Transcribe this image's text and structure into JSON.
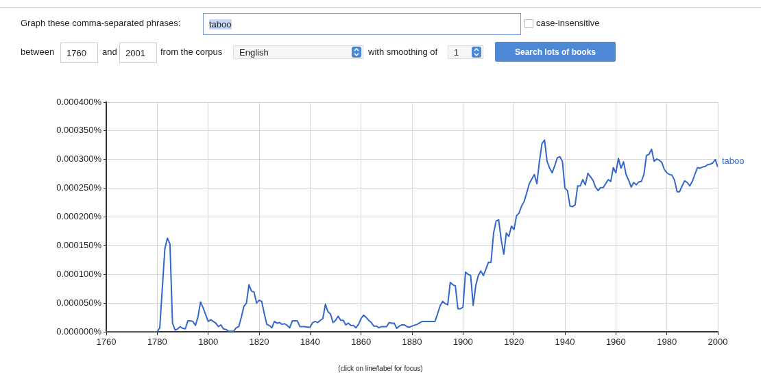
{
  "chart_data": {
    "type": "line",
    "annotations": [
      "Graph these comma-separated phrases:",
      "taboo",
      "case-insensitive",
      "between",
      "1760",
      "and",
      "2001",
      "from the corpus",
      "English",
      "with smoothing of",
      "1",
      "Search lots of books",
      "(click on line/label for focus)"
    ],
    "xlim": [
      1760,
      2000
    ],
    "xticks": [
      1760,
      1780,
      1800,
      1820,
      1840,
      1860,
      1880,
      1900,
      1920,
      1940,
      1960,
      1980,
      2000
    ],
    "ylim": [
      0,
      0.0004
    ],
    "yticks": [
      {
        "value": 0,
        "label": "0.000000%"
      },
      {
        "value": 5e-05,
        "label": "0.000050%"
      },
      {
        "value": 0.0001,
        "label": "0.000100%"
      },
      {
        "value": 0.00015,
        "label": "0.000150%"
      },
      {
        "value": 0.0002,
        "label": "0.000200%"
      },
      {
        "value": 0.00025,
        "label": "0.000250%"
      },
      {
        "value": 0.0003,
        "label": "0.000300%"
      },
      {
        "value": 0.00035,
        "label": "0.000350%"
      },
      {
        "value": 0.0004,
        "label": "0.000400%"
      }
    ],
    "grid": true,
    "legend": false,
    "marker": "none",
    "line_style": "solid",
    "series": [
      {
        "name": "taboo",
        "color": "#3366cc",
        "x": [
          1760,
          1765,
          1770,
          1775,
          1780,
          1781,
          1783,
          1784,
          1785,
          1786,
          1787,
          1788,
          1789,
          1790,
          1791,
          1792,
          1793,
          1794,
          1795,
          1796,
          1797,
          1798,
          1799,
          1800,
          1801,
          1802,
          1803,
          1804,
          1805,
          1806,
          1807,
          1808,
          1809,
          1810,
          1811,
          1812,
          1813,
          1814,
          1815,
          1816,
          1817,
          1818,
          1819,
          1820,
          1821,
          1822,
          1823,
          1824,
          1825,
          1826,
          1827,
          1828,
          1829,
          1830,
          1831,
          1832,
          1833,
          1834,
          1835,
          1836,
          1837,
          1838,
          1839,
          1840,
          1841,
          1842,
          1843,
          1844,
          1845,
          1846,
          1847,
          1848,
          1849,
          1850,
          1851,
          1852,
          1853,
          1854,
          1855,
          1856,
          1857,
          1858,
          1859,
          1860,
          1861,
          1862,
          1863,
          1864,
          1865,
          1866,
          1867,
          1868,
          1869,
          1870,
          1871,
          1872,
          1873,
          1874,
          1875,
          1876,
          1877,
          1878,
          1879,
          1880,
          1882,
          1884,
          1886,
          1888,
          1889,
          1890,
          1891,
          1892,
          1893,
          1894,
          1895,
          1896,
          1897,
          1898,
          1899,
          1900,
          1901,
          1902,
          1903,
          1904,
          1905,
          1906,
          1907,
          1908,
          1909,
          1910,
          1911,
          1912,
          1913,
          1914,
          1915,
          1916,
          1917,
          1918,
          1919,
          1920,
          1921,
          1922,
          1923,
          1924,
          1925,
          1926,
          1927,
          1928,
          1929,
          1930,
          1931,
          1932,
          1933,
          1934,
          1935,
          1936,
          1937,
          1938,
          1939,
          1940,
          1941,
          1942,
          1943,
          1944,
          1945,
          1946,
          1947,
          1948,
          1949,
          1950,
          1951,
          1952,
          1953,
          1954,
          1955,
          1956,
          1957,
          1958,
          1959,
          1960,
          1961,
          1962,
          1963,
          1964,
          1965,
          1966,
          1967,
          1968,
          1969,
          1970,
          1971,
          1972,
          1973,
          1974,
          1975,
          1976,
          1977,
          1978,
          1979,
          1980,
          1981,
          1982,
          1983,
          1984,
          1985,
          1986,
          1987,
          1988,
          1989,
          1990,
          1991,
          1992,
          1993,
          1994,
          1995,
          1996,
          1997,
          1998,
          1999,
          2000
        ],
        "values": [
          0,
          0,
          0,
          0,
          0,
          7e-06,
          0.000145,
          0.000163,
          0.000153,
          1.5e-05,
          3e-06,
          5e-06,
          9e-06,
          6e-06,
          5e-06,
          1.9e-05,
          1.9e-05,
          1.8e-05,
          1.1e-05,
          2.6e-05,
          5.2e-05,
          4.2e-05,
          3e-05,
          1.8e-05,
          2.1e-05,
          1.8e-05,
          1.5e-05,
          9e-06,
          1.2e-05,
          5e-06,
          4e-06,
          1e-06,
          1e-06,
          1e-06,
          7e-06,
          9e-06,
          2.5e-05,
          4.4e-05,
          5e-05,
          8.2e-05,
          7.1e-05,
          6.9e-05,
          5e-05,
          5.5e-05,
          5.3e-05,
          3.2e-05,
          1.3e-05,
          1.1e-05,
          7e-06,
          1.8e-05,
          1.5e-05,
          1.6e-05,
          1.3e-05,
          1.4e-05,
          1.1e-05,
          7e-06,
          1.9e-05,
          1.9e-05,
          1.9e-05,
          9e-06,
          9e-06,
          9e-06,
          8e-06,
          8e-06,
          1.6e-05,
          1.8e-05,
          1.6e-05,
          2e-05,
          2.3e-05,
          4.8e-05,
          3.5e-05,
          3.1e-05,
          1.6e-05,
          2e-05,
          2.7e-05,
          2e-05,
          2e-05,
          1.2e-05,
          1.5e-05,
          1.1e-05,
          1.1e-05,
          7e-06,
          1.3e-05,
          2.3e-05,
          2.9e-05,
          2.5e-05,
          2e-05,
          1.6e-05,
          1e-05,
          1e-05,
          7e-06,
          9e-06,
          9e-06,
          9e-06,
          1.6e-05,
          1.5e-05,
          1.5e-05,
          6e-06,
          1e-05,
          1.2e-05,
          1.2e-05,
          9e-06,
          8e-06,
          1e-05,
          1.3e-05,
          1.8e-05,
          1.8e-05,
          1.8e-05,
          1.8e-05,
          3.1e-05,
          4.5e-05,
          5.3e-05,
          4.9e-05,
          4.7e-05,
          8.6e-05,
          8.2e-05,
          8e-05,
          4e-05,
          4e-05,
          4.3e-05,
          0.000104,
          0.0001,
          9.8e-05,
          4.6e-05,
          8e-05,
          9.8e-05,
          0.000106,
          9.8e-05,
          0.000109,
          0.000121,
          0.000121,
          0.000172,
          0.000193,
          0.000195,
          0.00016,
          0.000135,
          0.000172,
          0.000166,
          0.000184,
          0.000178,
          0.000202,
          0.000207,
          0.000219,
          0.000227,
          0.000242,
          0.000258,
          0.000266,
          0.000274,
          0.000258,
          0.000297,
          0.000328,
          0.000334,
          0.000297,
          0.000285,
          0.000277,
          0.000289,
          0.000303,
          0.000305,
          0.000297,
          0.00025,
          0.000246,
          0.000219,
          0.000218,
          0.000221,
          0.000254,
          0.000254,
          0.000265,
          0.000256,
          0.000276,
          0.00027,
          0.000264,
          0.000252,
          0.000246,
          0.000251,
          0.000251,
          0.000258,
          0.000265,
          0.000262,
          0.000286,
          0.000277,
          0.000302,
          0.000285,
          0.000296,
          0.000274,
          0.000264,
          0.000252,
          0.00026,
          0.000256,
          0.000261,
          0.000262,
          0.000274,
          0.000307,
          0.000309,
          0.000318,
          0.000297,
          0.000301,
          0.000299,
          0.000295,
          0.000283,
          0.000277,
          0.000274,
          0.000273,
          0.000264,
          0.000244,
          0.000244,
          0.000254,
          0.000263,
          0.00026,
          0.000254,
          0.000262,
          0.000274,
          0.000286,
          0.000285,
          0.000287,
          0.000288,
          0.000291,
          0.000292,
          0.000294,
          0.0003,
          0.000287
        ]
      }
    ]
  }
}
